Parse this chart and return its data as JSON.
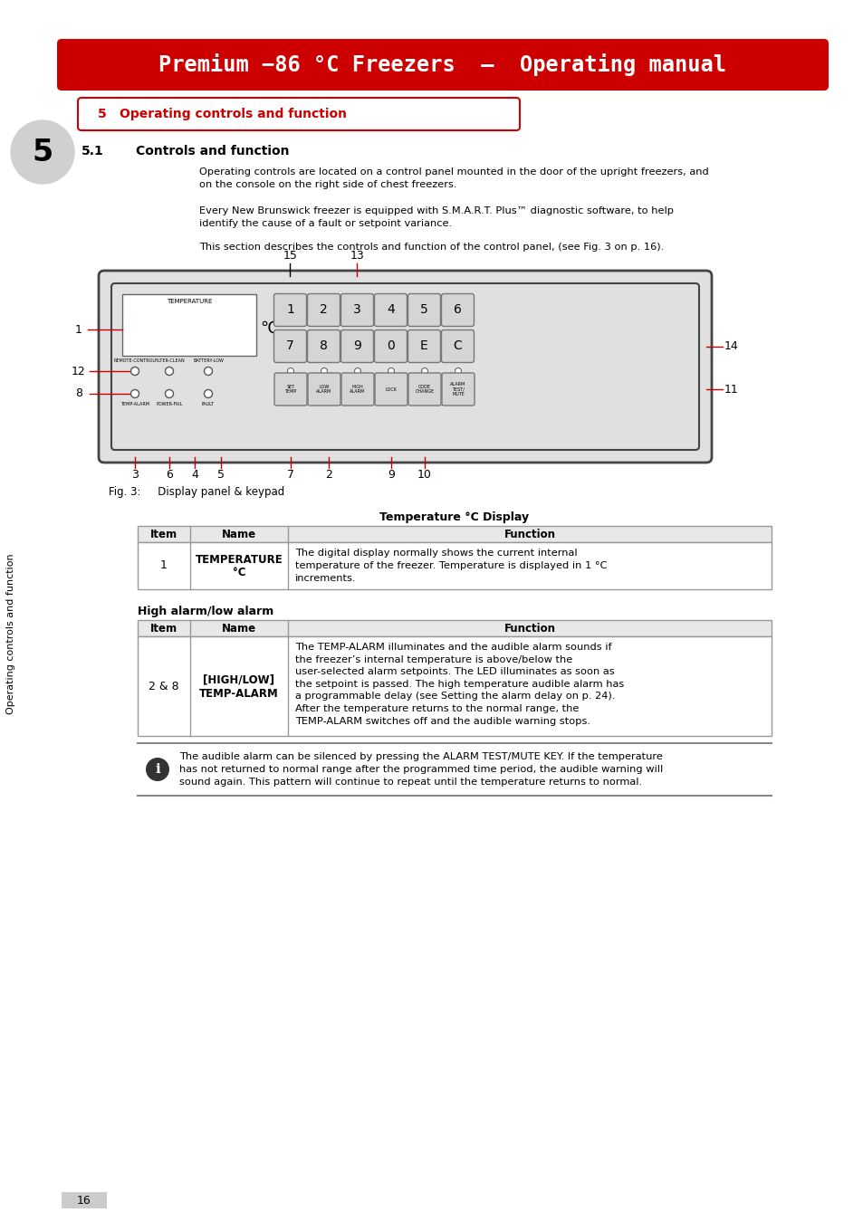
{
  "title_text": "Premium −86 °C Freezers  —  Operating manual",
  "title_bg": "#cc0000",
  "title_fg": "#ffffff",
  "section_number": "5",
  "section_title": "Operating controls and function",
  "subsection": "5.1",
  "subsection_title": "Controls and function",
  "para1": "Operating controls are located on a control panel mounted in the door of the upright freezers, and\non the console on the right side of chest freezers.",
  "para2": "Every New Brunswick freezer is equipped with S.M.A.R.T. Plus™ diagnostic software, to help\nidentify the cause of a fault or setpoint variance.",
  "para3": "This section describes the controls and function of the control panel, (see Fig. 3 on p. 16).",
  "fig_caption": "Fig. 3:     Display panel & keypad",
  "table1_title": "Temperature °C Display",
  "table1_headers": [
    "Item",
    "Name",
    "Function"
  ],
  "table1_row_item": "1",
  "table1_row_name1": "TEMPERATURE",
  "table1_row_name2": "°C",
  "table1_row_func": "The digital display normally shows the current internal\ntemperature of the freezer. Temperature is displayed in 1 °C\nincrements.",
  "table2_title": "High alarm/low alarm",
  "table2_headers": [
    "Item",
    "Name",
    "Function"
  ],
  "table2_row_item": "2 & 8",
  "table2_row_name1": "[HIGH/LOW]",
  "table2_row_name2": "TEMP-ALARM",
  "table2_row_func_normal": "The ",
  "table2_row_func": "The **TEMP-ALARM** illuminates and the audible alarm sounds if\nthe freezer’s internal temperature is above/below the\nuser-selected alarm setpoints. The LED illuminates as soon as\nthe setpoint is passed. The high temperature audible alarm has\na programmable delay (see Setting the alarm delay on p. 24).\nAfter the temperature returns to the normal range, the\n**TEMP-ALARM** switches off and the audible warning stops.",
  "info_text_pre": "The audible alarm can be silenced by pressing the ",
  "info_bold": "ALARM TEST/MUTE KEY",
  "info_text_post": ". If the temperature\nhas not returned to normal range after the programmed time period, the audible warning will\nsound again. This pattern will continue to repeat until the temperature returns to normal.",
  "page_number": "16",
  "sidebar_text": "Operating controls and function",
  "bg_color": "#ffffff",
  "text_color": "#000000",
  "red_color": "#cc0000",
  "gray_color": "#cccccc"
}
